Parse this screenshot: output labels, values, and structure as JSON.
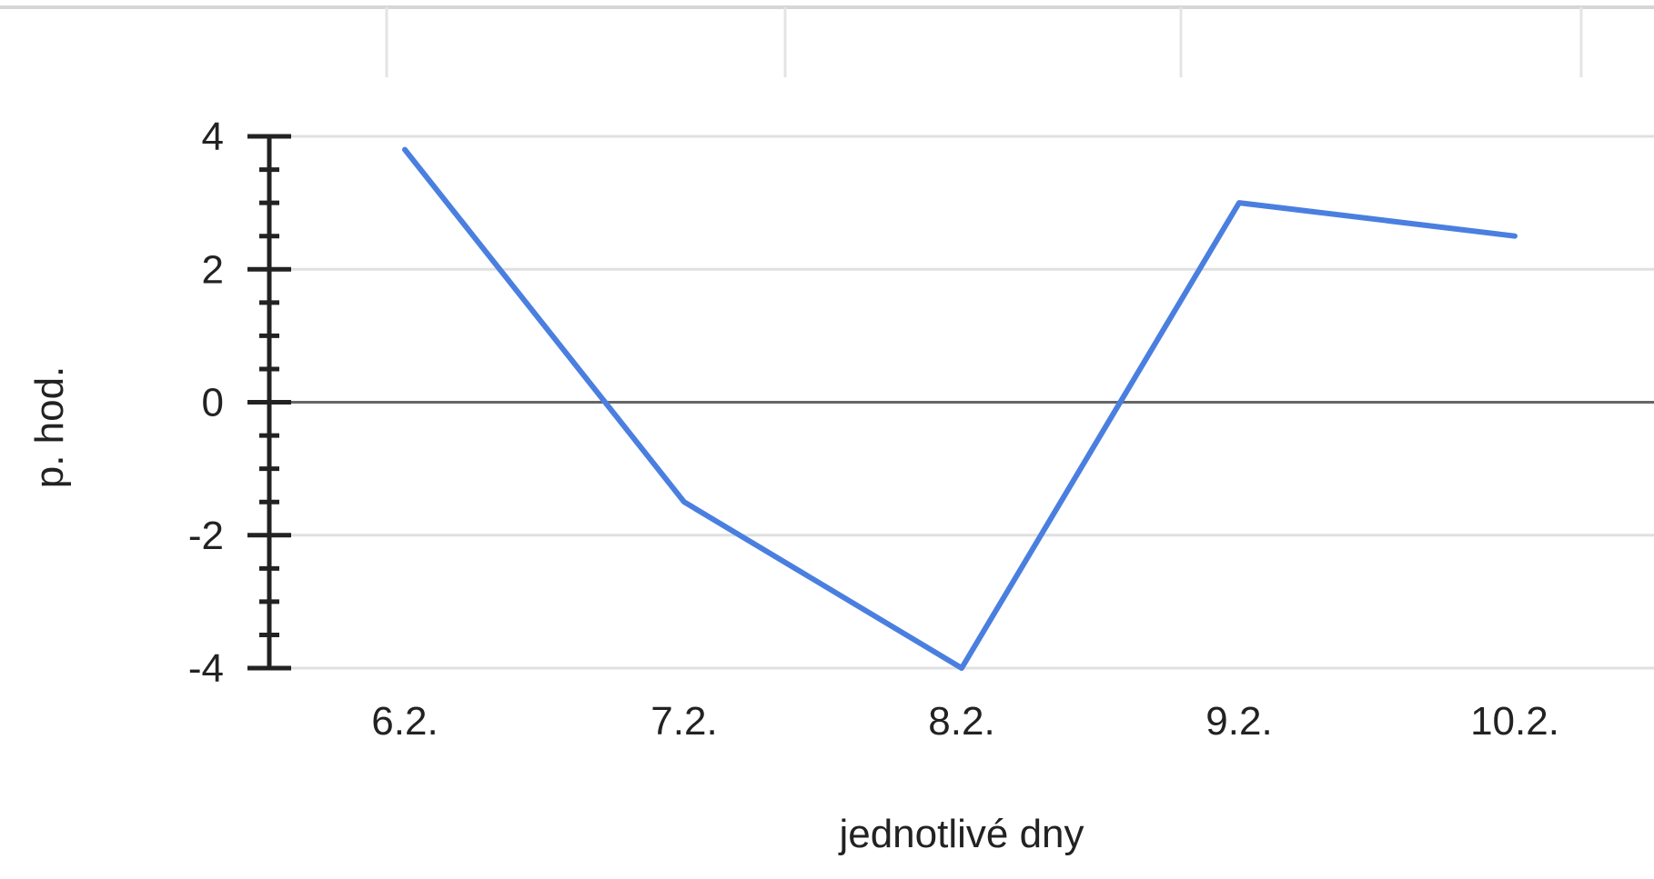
{
  "chart_data": {
    "type": "line",
    "title": "",
    "xlabel": "jednotlivé dny",
    "ylabel": "p. hod.",
    "categories": [
      "6.2.",
      "7.2.",
      "8.2.",
      "9.2.",
      "10.2."
    ],
    "series": [
      {
        "values": [
          3.8,
          -1.5,
          -4,
          3,
          2.5
        ],
        "color": "#4a7fe0"
      }
    ],
    "yticks": [
      4,
      2,
      0,
      -2,
      -4
    ],
    "ylim": [
      -4,
      4
    ],
    "grid": true,
    "legend": "none",
    "colors": {
      "line": "#4a7fe0",
      "grid": "#e0e0e0",
      "zero_line": "#666666",
      "axis": "#222222"
    }
  }
}
